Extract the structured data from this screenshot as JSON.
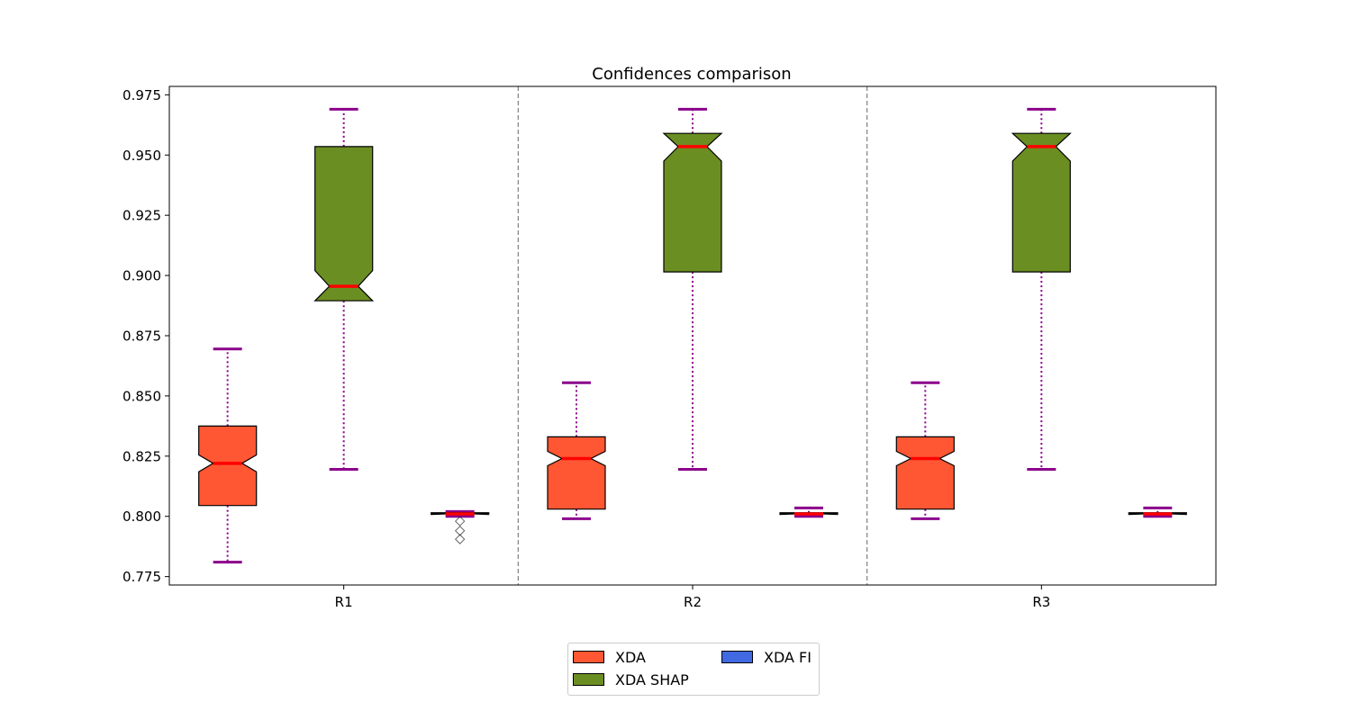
{
  "chart_data": {
    "type": "boxplot",
    "title": "Confidences comparison",
    "xlabel": "",
    "ylabel": "",
    "ylim": [
      0.7715,
      0.9785
    ],
    "yticks": [
      "0.775",
      "0.800",
      "0.825",
      "0.850",
      "0.875",
      "0.900",
      "0.925",
      "0.950",
      "0.975"
    ],
    "categories": [
      "R1",
      "R2",
      "R3"
    ],
    "notched": true,
    "median_color": "#ff0000",
    "whisker_color": "#8b008b",
    "group_separator": "dashed",
    "series": [
      {
        "name": "XDA",
        "color": "#ff5733",
        "boxes": [
          {
            "whislo": 0.781,
            "q1": 0.8045,
            "med": 0.822,
            "q3": 0.8375,
            "whishi": 0.8695,
            "notch_lo": 0.8185,
            "notch_hi": 0.8255,
            "fliers": []
          },
          {
            "whislo": 0.799,
            "q1": 0.803,
            "med": 0.824,
            "q3": 0.833,
            "whishi": 0.8555,
            "notch_lo": 0.821,
            "notch_hi": 0.827,
            "fliers": []
          },
          {
            "whislo": 0.799,
            "q1": 0.803,
            "med": 0.824,
            "q3": 0.833,
            "whishi": 0.8555,
            "notch_lo": 0.821,
            "notch_hi": 0.827,
            "fliers": []
          }
        ]
      },
      {
        "name": "XDA SHAP",
        "color": "#6b8e23",
        "boxes": [
          {
            "whislo": 0.8195,
            "q1": 0.8895,
            "med": 0.8955,
            "q3": 0.9535,
            "whishi": 0.969,
            "notch_lo": 0.8895,
            "notch_hi": 0.902,
            "fliers": []
          },
          {
            "whislo": 0.8195,
            "q1": 0.9015,
            "med": 0.9535,
            "q3": 0.959,
            "whishi": 0.969,
            "notch_lo": 0.9475,
            "notch_hi": 0.959,
            "fliers": []
          },
          {
            "whislo": 0.8195,
            "q1": 0.9015,
            "med": 0.9535,
            "q3": 0.959,
            "whishi": 0.969,
            "notch_lo": 0.9475,
            "notch_hi": 0.959,
            "fliers": []
          }
        ]
      },
      {
        "name": "XDA FI",
        "color": "#4169e1",
        "boxes": [
          {
            "whislo": 0.8,
            "q1": 0.801,
            "med": 0.801,
            "q3": 0.8015,
            "whishi": 0.802,
            "notch_lo": 0.8008,
            "notch_hi": 0.8012,
            "fliers": [
              0.798,
              0.794,
              0.7905
            ]
          },
          {
            "whislo": 0.8,
            "q1": 0.801,
            "med": 0.801,
            "q3": 0.8015,
            "whishi": 0.8035,
            "notch_lo": 0.8008,
            "notch_hi": 0.8012,
            "fliers": []
          },
          {
            "whislo": 0.8,
            "q1": 0.801,
            "med": 0.801,
            "q3": 0.8015,
            "whishi": 0.8035,
            "notch_lo": 0.8008,
            "notch_hi": 0.8012,
            "fliers": []
          }
        ]
      }
    ],
    "legend": {
      "position": "lower-center",
      "columns": 2,
      "entries": [
        {
          "label": "XDA",
          "color": "#ff5733"
        },
        {
          "label": "XDA SHAP",
          "color": "#6b8e23"
        },
        {
          "label": "XDA FI",
          "color": "#4169e1"
        }
      ]
    }
  }
}
